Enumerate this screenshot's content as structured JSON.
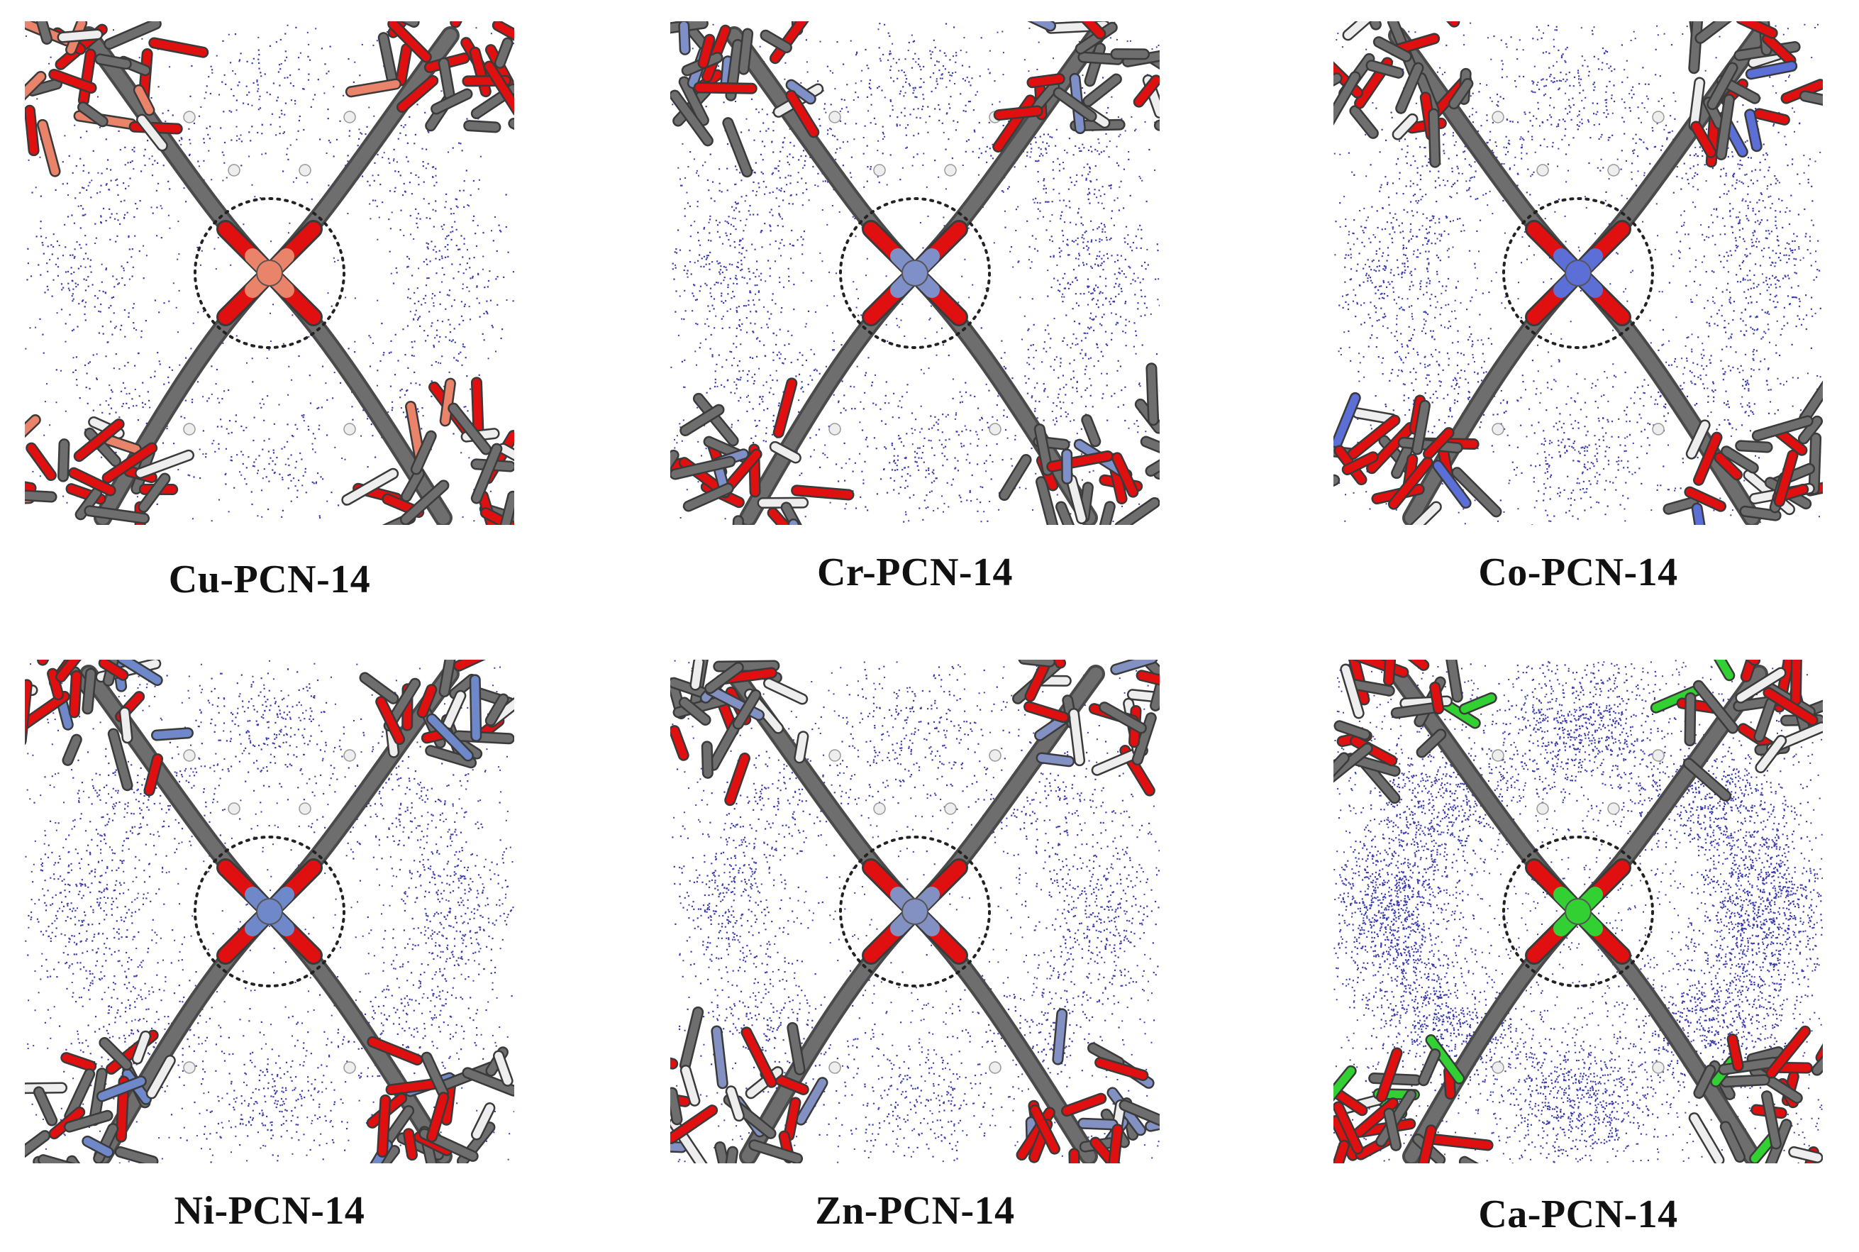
{
  "figure": {
    "panels": [
      {
        "label": "Cu-PCN-14",
        "metal": "Cu",
        "metal_color": "#e9836a",
        "density": 0.55
      },
      {
        "label": "Cr-PCN-14",
        "metal": "Cr",
        "metal_color": "#7f8fc7",
        "density": 0.85
      },
      {
        "label": "Co-PCN-14",
        "metal": "Co",
        "metal_color": "#5b6fd6",
        "density": 0.95
      },
      {
        "label": "Ni-PCN-14",
        "metal": "Ni",
        "metal_color": "#6f88c9",
        "density": 1.0
      },
      {
        "label": "Zn-PCN-14",
        "metal": "Zn",
        "metal_color": "#8391c2",
        "density": 1.0
      },
      {
        "label": "Ca-PCN-14",
        "metal": "Ca",
        "metal_color": "#33d033",
        "density": 2.6
      }
    ],
    "colors": {
      "adsorbate_points": "#1a1aa0",
      "carbon": "#6e6e6e",
      "oxygen": "#e01010",
      "hydrogen": "#eeeeee",
      "highlight_circle": "#222222"
    }
  }
}
